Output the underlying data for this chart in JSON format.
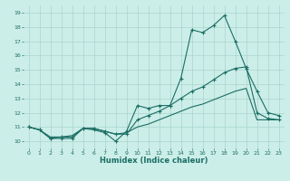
{
  "title": "",
  "xlabel": "Humidex (Indice chaleur)",
  "ylabel": "",
  "bg_color": "#cceee8",
  "grid_color": "#aad4ce",
  "line_color": "#1a6e64",
  "xlim": [
    -0.5,
    23.5
  ],
  "ylim": [
    9.5,
    19.5
  ],
  "xticks": [
    0,
    1,
    2,
    3,
    4,
    5,
    6,
    7,
    8,
    9,
    10,
    11,
    12,
    13,
    14,
    15,
    16,
    17,
    18,
    19,
    20,
    21,
    22,
    23
  ],
  "yticks": [
    10,
    11,
    12,
    13,
    14,
    15,
    16,
    17,
    18,
    19
  ],
  "line1_x": [
    0,
    1,
    2,
    3,
    4,
    5,
    6,
    7,
    8,
    9,
    10,
    11,
    12,
    13,
    14,
    15,
    16,
    17,
    18,
    19,
    20,
    21,
    22,
    23
  ],
  "line1_y": [
    11.0,
    10.8,
    10.2,
    10.2,
    10.2,
    10.9,
    10.8,
    10.6,
    10.0,
    10.7,
    12.5,
    12.3,
    12.5,
    12.5,
    14.4,
    17.8,
    17.6,
    18.1,
    18.8,
    17.0,
    15.1,
    13.5,
    12.0,
    11.8
  ],
  "line2_x": [
    0,
    1,
    2,
    3,
    4,
    5,
    6,
    7,
    8,
    9,
    10,
    11,
    12,
    13,
    14,
    15,
    16,
    17,
    18,
    19,
    20,
    21,
    22,
    23
  ],
  "line2_y": [
    11.0,
    10.8,
    10.2,
    10.3,
    10.3,
    10.9,
    10.9,
    10.7,
    10.5,
    10.5,
    11.5,
    11.8,
    12.1,
    12.5,
    13.0,
    13.5,
    13.8,
    14.3,
    14.8,
    15.1,
    15.2,
    12.0,
    11.6,
    11.5
  ],
  "line3_x": [
    0,
    1,
    2,
    3,
    4,
    5,
    6,
    7,
    8,
    9,
    10,
    11,
    12,
    13,
    14,
    15,
    16,
    17,
    18,
    19,
    20,
    21,
    22,
    23
  ],
  "line3_y": [
    11.0,
    10.8,
    10.3,
    10.3,
    10.4,
    10.9,
    10.9,
    10.7,
    10.5,
    10.6,
    11.0,
    11.2,
    11.5,
    11.8,
    12.1,
    12.4,
    12.6,
    12.9,
    13.2,
    13.5,
    13.7,
    11.5,
    11.5,
    11.5
  ]
}
